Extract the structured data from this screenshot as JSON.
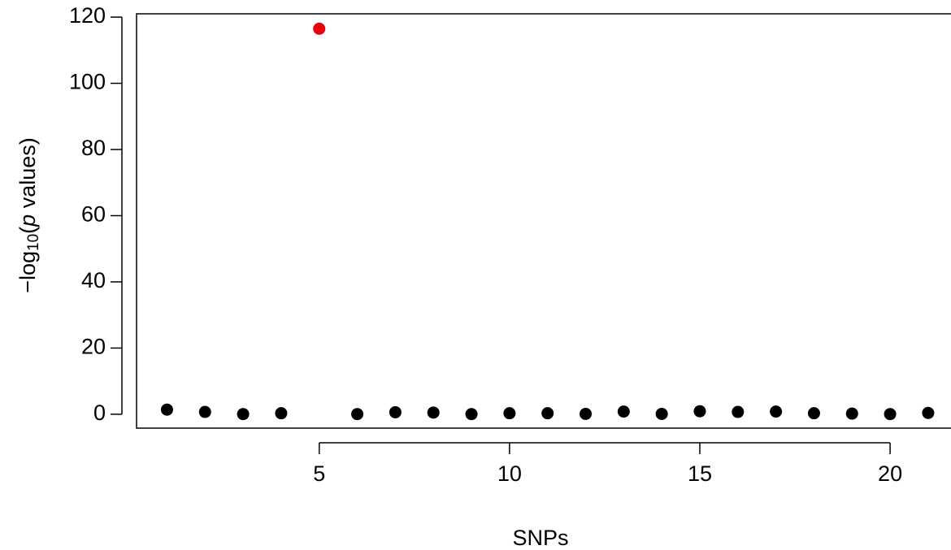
{
  "chart_data": {
    "type": "scatter",
    "xlabel": "SNPs",
    "ylabel_parts": [
      "−log",
      "10",
      "(",
      "p",
      " values)"
    ],
    "x": [
      1,
      2,
      3,
      4,
      5,
      6,
      7,
      8,
      9,
      10,
      11,
      12,
      13,
      14,
      15,
      16,
      17,
      18,
      19,
      20,
      21
    ],
    "values": [
      1.4,
      0.7,
      0.05,
      0.3,
      116.5,
      0.05,
      0.6,
      0.5,
      0.05,
      0.3,
      0.3,
      0.1,
      0.8,
      0.1,
      0.9,
      0.7,
      0.8,
      0.3,
      0.2,
      0.05,
      0.4
    ],
    "colors": [
      "#000000",
      "#000000",
      "#000000",
      "#000000",
      "#e8000b",
      "#000000",
      "#000000",
      "#000000",
      "#000000",
      "#000000",
      "#000000",
      "#000000",
      "#000000",
      "#000000",
      "#000000",
      "#000000",
      "#000000",
      "#000000",
      "#000000",
      "#000000",
      "#000000"
    ],
    "xlim": [
      0.2,
      21.6
    ],
    "ylim": [
      -4.2,
      121
    ],
    "xticks": [
      5,
      10,
      15,
      20
    ],
    "yticks": [
      0,
      20,
      40,
      60,
      80,
      100,
      120
    ]
  }
}
